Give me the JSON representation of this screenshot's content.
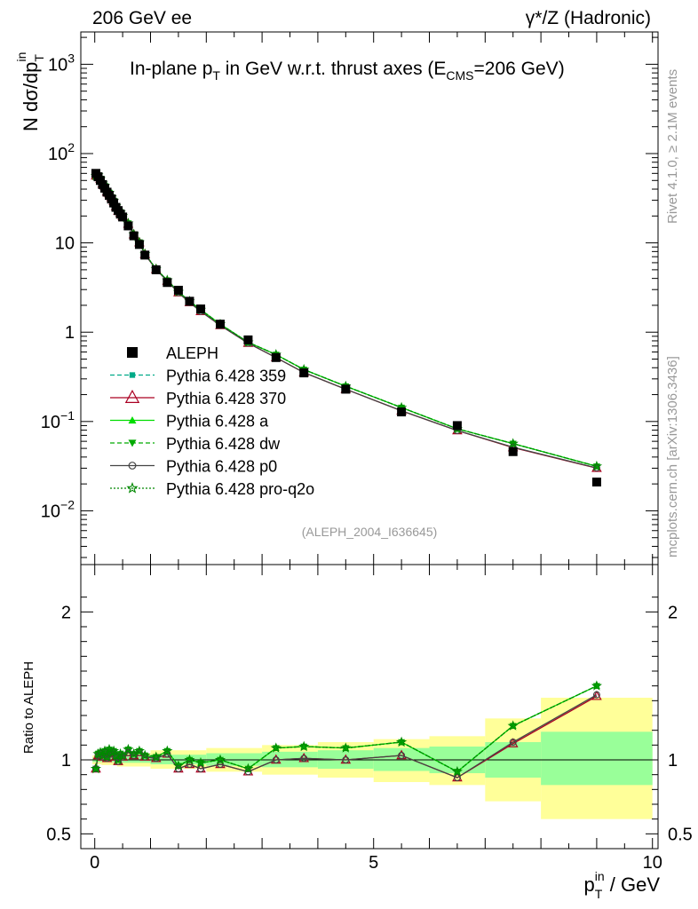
{
  "header": {
    "left": "206 GeV ee",
    "right_prefix": "γ*/Z",
    "right_suffix": "(Hadronic)"
  },
  "side": {
    "rivet": "Rivet 4.1.0, ≥ 2.1M events",
    "mcplots": "mcplots.cern.ch [arXiv:1306.3436]"
  },
  "chart_data": {
    "type": "line",
    "title_a": "In-plane p",
    "title_sub": "T",
    "title_b": " in GeV w.r.t. thrust axes (E",
    "title_sub2": "CMS",
    "title_c": "=206 GeV)",
    "analysis_tag": "(ALEPH_2004_I636645)",
    "ylabel_main": {
      "prefix": "N  dσ/dp",
      "sub": "T",
      "sup": "in"
    },
    "ylabel_ratio": "Ratio to ALEPH",
    "xlabel": {
      "main": "p",
      "sub": "T",
      "sup": "in",
      "suffix": " / GeV"
    },
    "xlim": [
      -0.25,
      10.1
    ],
    "ylim_main": [
      0.0025,
      2300
    ],
    "ylim_ratio": [
      0.4,
      2.32
    ],
    "x_ticks": [
      {
        "v": 0,
        "label": "0"
      },
      {
        "v": 5,
        "label": "5"
      },
      {
        "v": 10,
        "label": "10"
      }
    ],
    "y_ticks_main": [
      {
        "v": 1000,
        "base": "10",
        "exp": "3"
      },
      {
        "v": 100,
        "base": "10",
        "exp": "2"
      },
      {
        "v": 10,
        "base": "10",
        "exp": ""
      },
      {
        "v": 1,
        "base": "1",
        "exp": ""
      },
      {
        "v": 0.1,
        "base": "10",
        "exp": "−1"
      },
      {
        "v": 0.01,
        "base": "10",
        "exp": "−2"
      }
    ],
    "y_ticks_ratio": [
      {
        "v": 0.5,
        "label": "0.5"
      },
      {
        "v": 1,
        "label": "1"
      },
      {
        "v": 2,
        "label": "2"
      }
    ],
    "data": {
      "name": "ALEPH",
      "x": [
        0.02,
        0.06,
        0.1,
        0.14,
        0.18,
        0.22,
        0.26,
        0.3,
        0.34,
        0.38,
        0.42,
        0.46,
        0.5,
        0.6,
        0.7,
        0.8,
        0.9,
        1.1,
        1.3,
        1.5,
        1.7,
        1.9,
        2.25,
        2.75,
        3.25,
        3.75,
        4.5,
        5.5,
        6.5,
        7.5,
        9.0
      ],
      "y": [
        60,
        55,
        50,
        45,
        41,
        37,
        34,
        31,
        28,
        25,
        23,
        21,
        19.5,
        15.5,
        12.0,
        9.6,
        7.3,
        5.0,
        3.6,
        2.95,
        2.22,
        1.82,
        1.23,
        0.82,
        0.52,
        0.35,
        0.23,
        0.128,
        0.09,
        0.046,
        0.021
      ]
    },
    "bands": [
      {
        "x0": -0.04,
        "x1": 0.12,
        "inner": [
          0.985,
          1.015
        ],
        "outer": [
          0.97,
          1.03
        ]
      },
      {
        "x0": 0.12,
        "x1": 0.4,
        "inner": [
          0.985,
          1.02
        ],
        "outer": [
          0.965,
          1.035
        ]
      },
      {
        "x0": 0.4,
        "x1": 1.0,
        "inner": [
          0.98,
          1.025
        ],
        "outer": [
          0.955,
          1.045
        ]
      },
      {
        "x0": 1.0,
        "x1": 2.0,
        "inner": [
          0.97,
          1.035
        ],
        "outer": [
          0.94,
          1.065
        ]
      },
      {
        "x0": 2.0,
        "x1": 3.0,
        "inner": [
          0.96,
          1.045
        ],
        "outer": [
          0.92,
          1.08
        ]
      },
      {
        "x0": 3.0,
        "x1": 4.0,
        "inner": [
          0.95,
          1.055
        ],
        "outer": [
          0.9,
          1.1
        ]
      },
      {
        "x0": 4.0,
        "x1": 5.0,
        "inner": [
          0.94,
          1.065
        ],
        "outer": [
          0.88,
          1.12
        ]
      },
      {
        "x0": 5.0,
        "x1": 6.0,
        "inner": [
          0.925,
          1.08
        ],
        "outer": [
          0.85,
          1.14
        ]
      },
      {
        "x0": 6.0,
        "x1": 7.0,
        "inner": [
          0.91,
          1.09
        ],
        "outer": [
          0.83,
          1.16
        ]
      },
      {
        "x0": 7.0,
        "x1": 8.0,
        "inner": [
          0.88,
          1.12
        ],
        "outer": [
          0.72,
          1.28
        ]
      },
      {
        "x0": 8.0,
        "x1": 10.0,
        "inner": [
          0.83,
          1.19
        ],
        "outer": [
          0.6,
          1.42
        ]
      }
    ],
    "series": [
      {
        "name": "Pythia 6.428 359",
        "color": "#00aa88",
        "dash": "5,3",
        "marker": "square",
        "ratio": [
          0.94,
          1.04,
          1.05,
          1.03,
          1.06,
          1.02,
          1.07,
          1.05,
          1.06,
          1.03,
          1.0,
          1.04,
          1.03,
          1.07,
          1.04,
          1.06,
          1.03,
          1.02,
          1.06,
          0.96,
          1.0,
          0.98,
          1.0,
          0.94,
          1.08,
          1.09,
          1.08,
          1.12,
          0.92,
          1.23,
          1.5
        ]
      },
      {
        "name": "Pythia 6.428 370",
        "color": "#aa0022",
        "dash": "",
        "marker": "triangle-open",
        "ratio": [
          0.94,
          1.03,
          1.04,
          1.02,
          1.05,
          1.01,
          1.05,
          1.04,
          1.05,
          1.02,
          0.99,
          1.03,
          1.02,
          1.05,
          1.03,
          1.05,
          1.02,
          1.01,
          1.04,
          0.94,
          0.97,
          0.94,
          0.97,
          0.92,
          1.0,
          1.01,
          1.0,
          1.03,
          0.88,
          1.11,
          1.43
        ]
      },
      {
        "name": "Pythia 6.428 a",
        "color": "#00dd00",
        "dash": "",
        "marker": "triangle",
        "ratio": [
          0.94,
          1.04,
          1.05,
          1.03,
          1.06,
          1.02,
          1.07,
          1.05,
          1.06,
          1.03,
          1.0,
          1.04,
          1.03,
          1.07,
          1.04,
          1.06,
          1.03,
          1.02,
          1.06,
          0.96,
          1.0,
          0.98,
          1.0,
          0.94,
          1.08,
          1.09,
          1.08,
          1.12,
          0.92,
          1.23,
          1.5
        ]
      },
      {
        "name": "Pythia 6.428 dw",
        "color": "#00aa00",
        "dash": "5,3",
        "marker": "triangle-down",
        "ratio": [
          0.94,
          1.04,
          1.05,
          1.03,
          1.06,
          1.02,
          1.07,
          1.05,
          1.06,
          1.03,
          1.0,
          1.04,
          1.03,
          1.07,
          1.04,
          1.06,
          1.03,
          1.02,
          1.06,
          0.96,
          1.0,
          0.98,
          1.0,
          0.94,
          1.08,
          1.09,
          1.08,
          1.12,
          0.92,
          1.23,
          1.5
        ]
      },
      {
        "name": "Pythia 6.428 p0",
        "color": "#444444",
        "dash": "",
        "marker": "circle-open",
        "ratio": [
          0.94,
          1.03,
          1.04,
          1.02,
          1.05,
          1.01,
          1.05,
          1.04,
          1.05,
          1.02,
          0.99,
          1.03,
          1.02,
          1.05,
          1.03,
          1.05,
          1.02,
          1.01,
          1.04,
          0.94,
          0.97,
          0.94,
          0.97,
          0.92,
          1.0,
          1.01,
          1.0,
          1.03,
          0.88,
          1.12,
          1.44
        ]
      },
      {
        "name": "Pythia 6.428 pro-q2o",
        "color": "#008800",
        "dash": "2,2",
        "marker": "star",
        "ratio": [
          0.94,
          1.04,
          1.05,
          1.03,
          1.06,
          1.02,
          1.07,
          1.05,
          1.06,
          1.03,
          1.0,
          1.04,
          1.03,
          1.07,
          1.04,
          1.06,
          1.03,
          1.02,
          1.06,
          0.96,
          1.0,
          0.98,
          1.0,
          0.94,
          1.08,
          1.09,
          1.08,
          1.12,
          0.92,
          1.23,
          1.5
        ]
      }
    ]
  }
}
